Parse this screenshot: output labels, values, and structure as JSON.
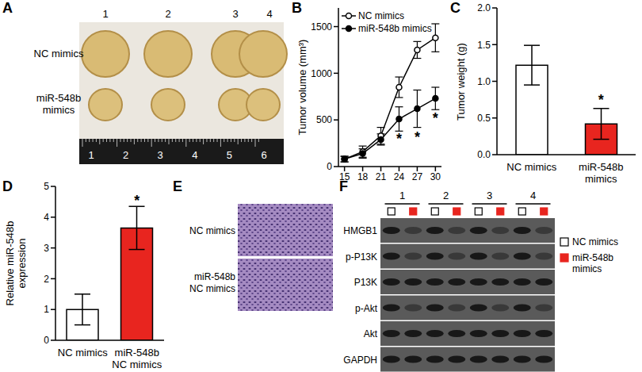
{
  "chart_data": [
    {
      "panel": "B",
      "type": "line",
      "x": [
        15,
        18,
        21,
        24,
        27,
        30
      ],
      "xlim": [
        14,
        31
      ],
      "xticks": [
        15,
        18,
        21,
        24,
        27,
        30
      ],
      "ylim": [
        0,
        1700
      ],
      "yticks": [
        0,
        500,
        1000,
        1500
      ],
      "y_label": "Tumor volume (mm³)",
      "legend": "upper left",
      "series": [
        {
          "name": "NC mimics",
          "color": "#000000",
          "marker": "open_circle",
          "values": [
            80,
            160,
            330,
            850,
            1250,
            1380
          ],
          "errors": [
            30,
            60,
            90,
            110,
            90,
            150
          ]
        },
        {
          "name": "miR-548b mimics",
          "color": "#000000",
          "marker": "circle",
          "values": [
            80,
            140,
            290,
            510,
            620,
            730
          ],
          "errors": [
            30,
            50,
            60,
            130,
            200,
            120
          ]
        }
      ],
      "annotations": [
        {
          "text": "*",
          "x": 24,
          "y": 300
        },
        {
          "text": "*",
          "x": 27,
          "y": 320
        },
        {
          "text": "*",
          "x": 30,
          "y": 520
        }
      ]
    },
    {
      "panel": "C",
      "type": "bar",
      "categories": [
        "NC mimics",
        "miR-548b mimics"
      ],
      "values": [
        1.22,
        0.42
      ],
      "errors": [
        0.27,
        0.21
      ],
      "colors": [
        "#ffffff",
        "#e8251f"
      ],
      "ylim": [
        0,
        2
      ],
      "yticks": [
        {
          "value": 0,
          "label": "0.0"
        },
        {
          "value": 0.5,
          "label": "0.5"
        },
        {
          "value": 1,
          "label": "1.0"
        },
        {
          "value": 1.5,
          "label": "1.5"
        },
        {
          "value": 2,
          "label": "2.0"
        }
      ],
      "y_label": "Tumor weight (g)",
      "annotations": [
        {
          "text": "*",
          "category": "miR-548b mimics",
          "y": 0.75
        }
      ]
    },
    {
      "panel": "D",
      "type": "bar",
      "categories": [
        "NC mimics",
        "miR-548b NC mimics"
      ],
      "values": [
        1.0,
        3.65
      ],
      "errors": [
        0.5,
        0.7
      ],
      "colors": [
        "#ffffff",
        "#e8251f"
      ],
      "ylim": [
        0,
        5
      ],
      "yticks": [
        0,
        1,
        2,
        3,
        4,
        5
      ],
      "y_label": "Relative miR-548b expression",
      "annotations": [
        {
          "text": "*",
          "category": "miR-548b NC mimics",
          "y": 4.55
        }
      ]
    }
  ],
  "images": [
    {
      "panel": "A",
      "row_labels": [
        "NC mimics",
        "miR-548b mimics"
      ],
      "column_labels": [
        "1",
        "2",
        "3",
        "4"
      ],
      "ruler_labels": [
        "1",
        "2",
        "3",
        "4",
        "5",
        "6"
      ]
    },
    {
      "panel": "E",
      "row_labels": [
        "NC mimics",
        "miR-548b NC mimics"
      ]
    },
    {
      "panel": "F",
      "lane_labels": [
        "1",
        "2",
        "3",
        "4"
      ],
      "row_labels": [
        "HMGB1",
        "p-P13K",
        "P13K",
        "p-Akt",
        "Akt",
        "GAPDH"
      ],
      "legend": [
        {
          "name": "NC mimics",
          "color": "#ffffff"
        },
        {
          "name": "miR-548b mimics",
          "color": "#e8251f"
        }
      ]
    }
  ]
}
